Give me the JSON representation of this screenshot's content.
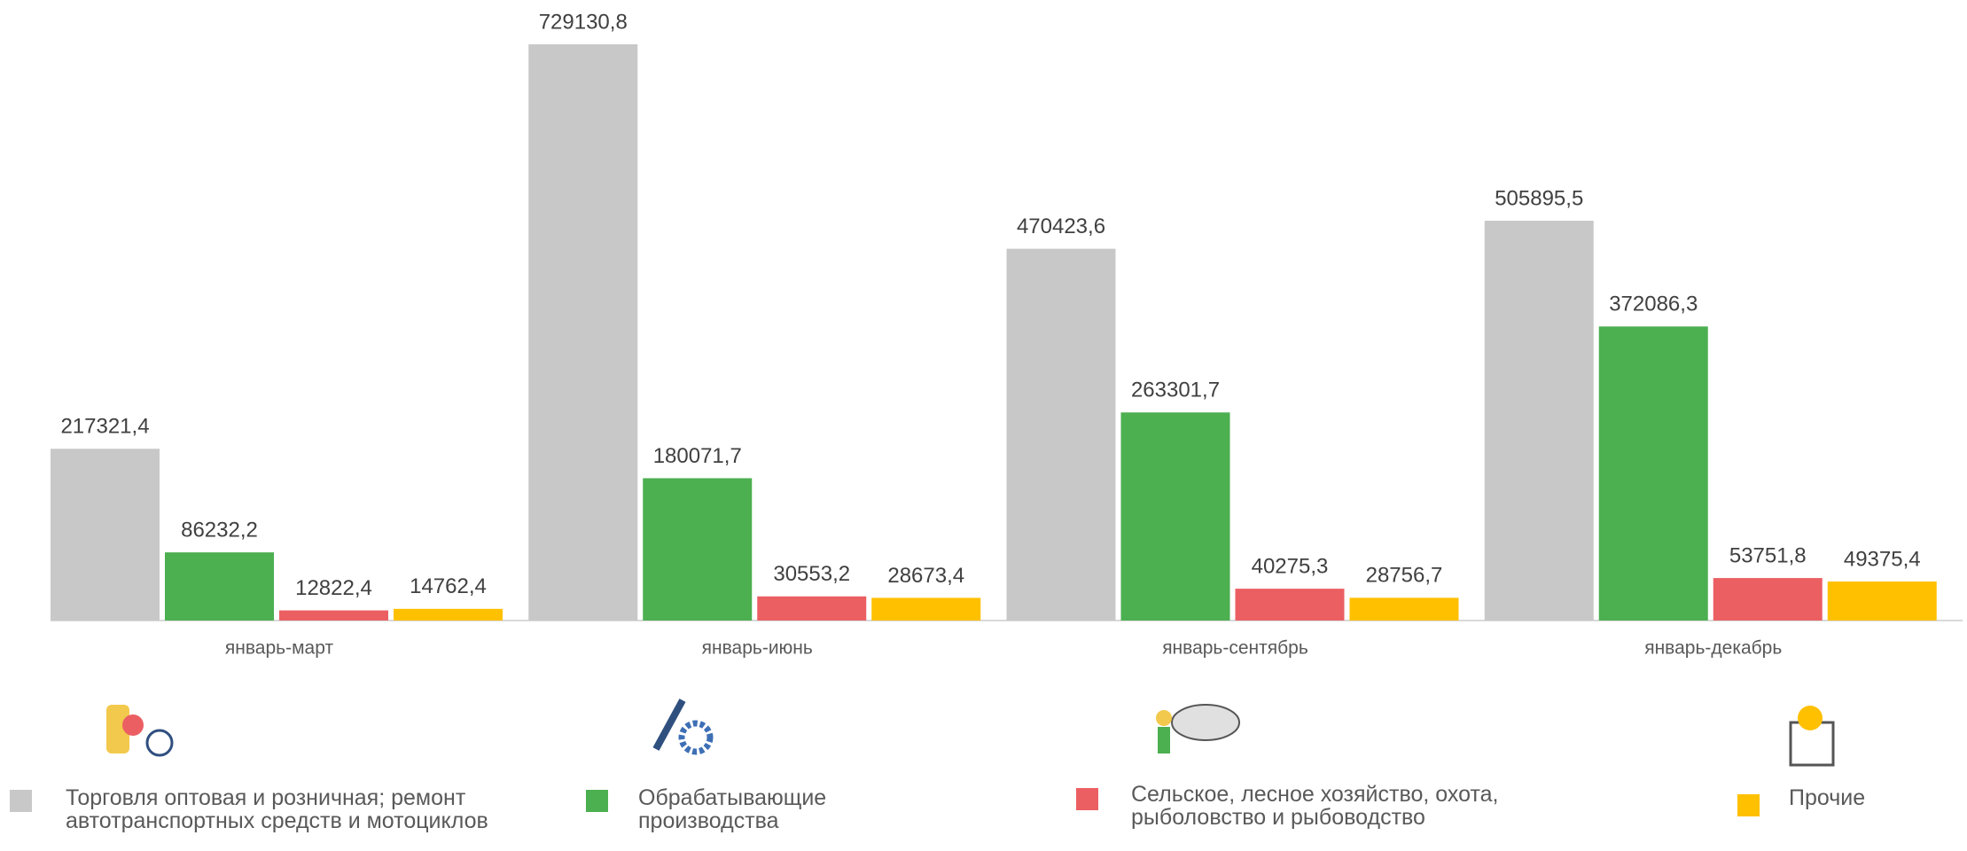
{
  "chart_data": {
    "type": "bar",
    "categories": [
      "январь-март",
      "январь-июнь",
      "январь-сентябрь",
      "январь-декабрь"
    ],
    "series": [
      {
        "name": "Торговля оптовая и розничная; ремонт автотранспортных средств и мотоциклов",
        "color": "#c8c8c8",
        "values": [
          217321.4,
          729130.8,
          470423.6,
          505895.5
        ],
        "value_labels": [
          "217321,4",
          "729130,8",
          "470423,6",
          "505895,5"
        ]
      },
      {
        "name": "Обрабатывающие производства",
        "color": "#4caf50",
        "values": [
          86232.2,
          180071.7,
          263301.7,
          372086.3
        ],
        "value_labels": [
          "86232,2",
          "180071,7",
          "263301,7",
          "372086,3"
        ]
      },
      {
        "name": "Сельское, лесное хозяйство, охота, рыболовство и рыбоводство",
        "color": "#eb5f63",
        "values": [
          12822.4,
          30553.2,
          40275.3,
          53751.8
        ],
        "value_labels": [
          "12822,4",
          "30553,2",
          "40275,3",
          "53751,8"
        ]
      },
      {
        "name": "Прочие",
        "color": "#ffc000",
        "values": [
          14762.4,
          28673.4,
          28756.7,
          49375.4
        ],
        "value_labels": [
          "14762,4",
          "28673,4",
          "28756,7",
          "49375,4"
        ]
      }
    ],
    "legend": "bottom"
  }
}
